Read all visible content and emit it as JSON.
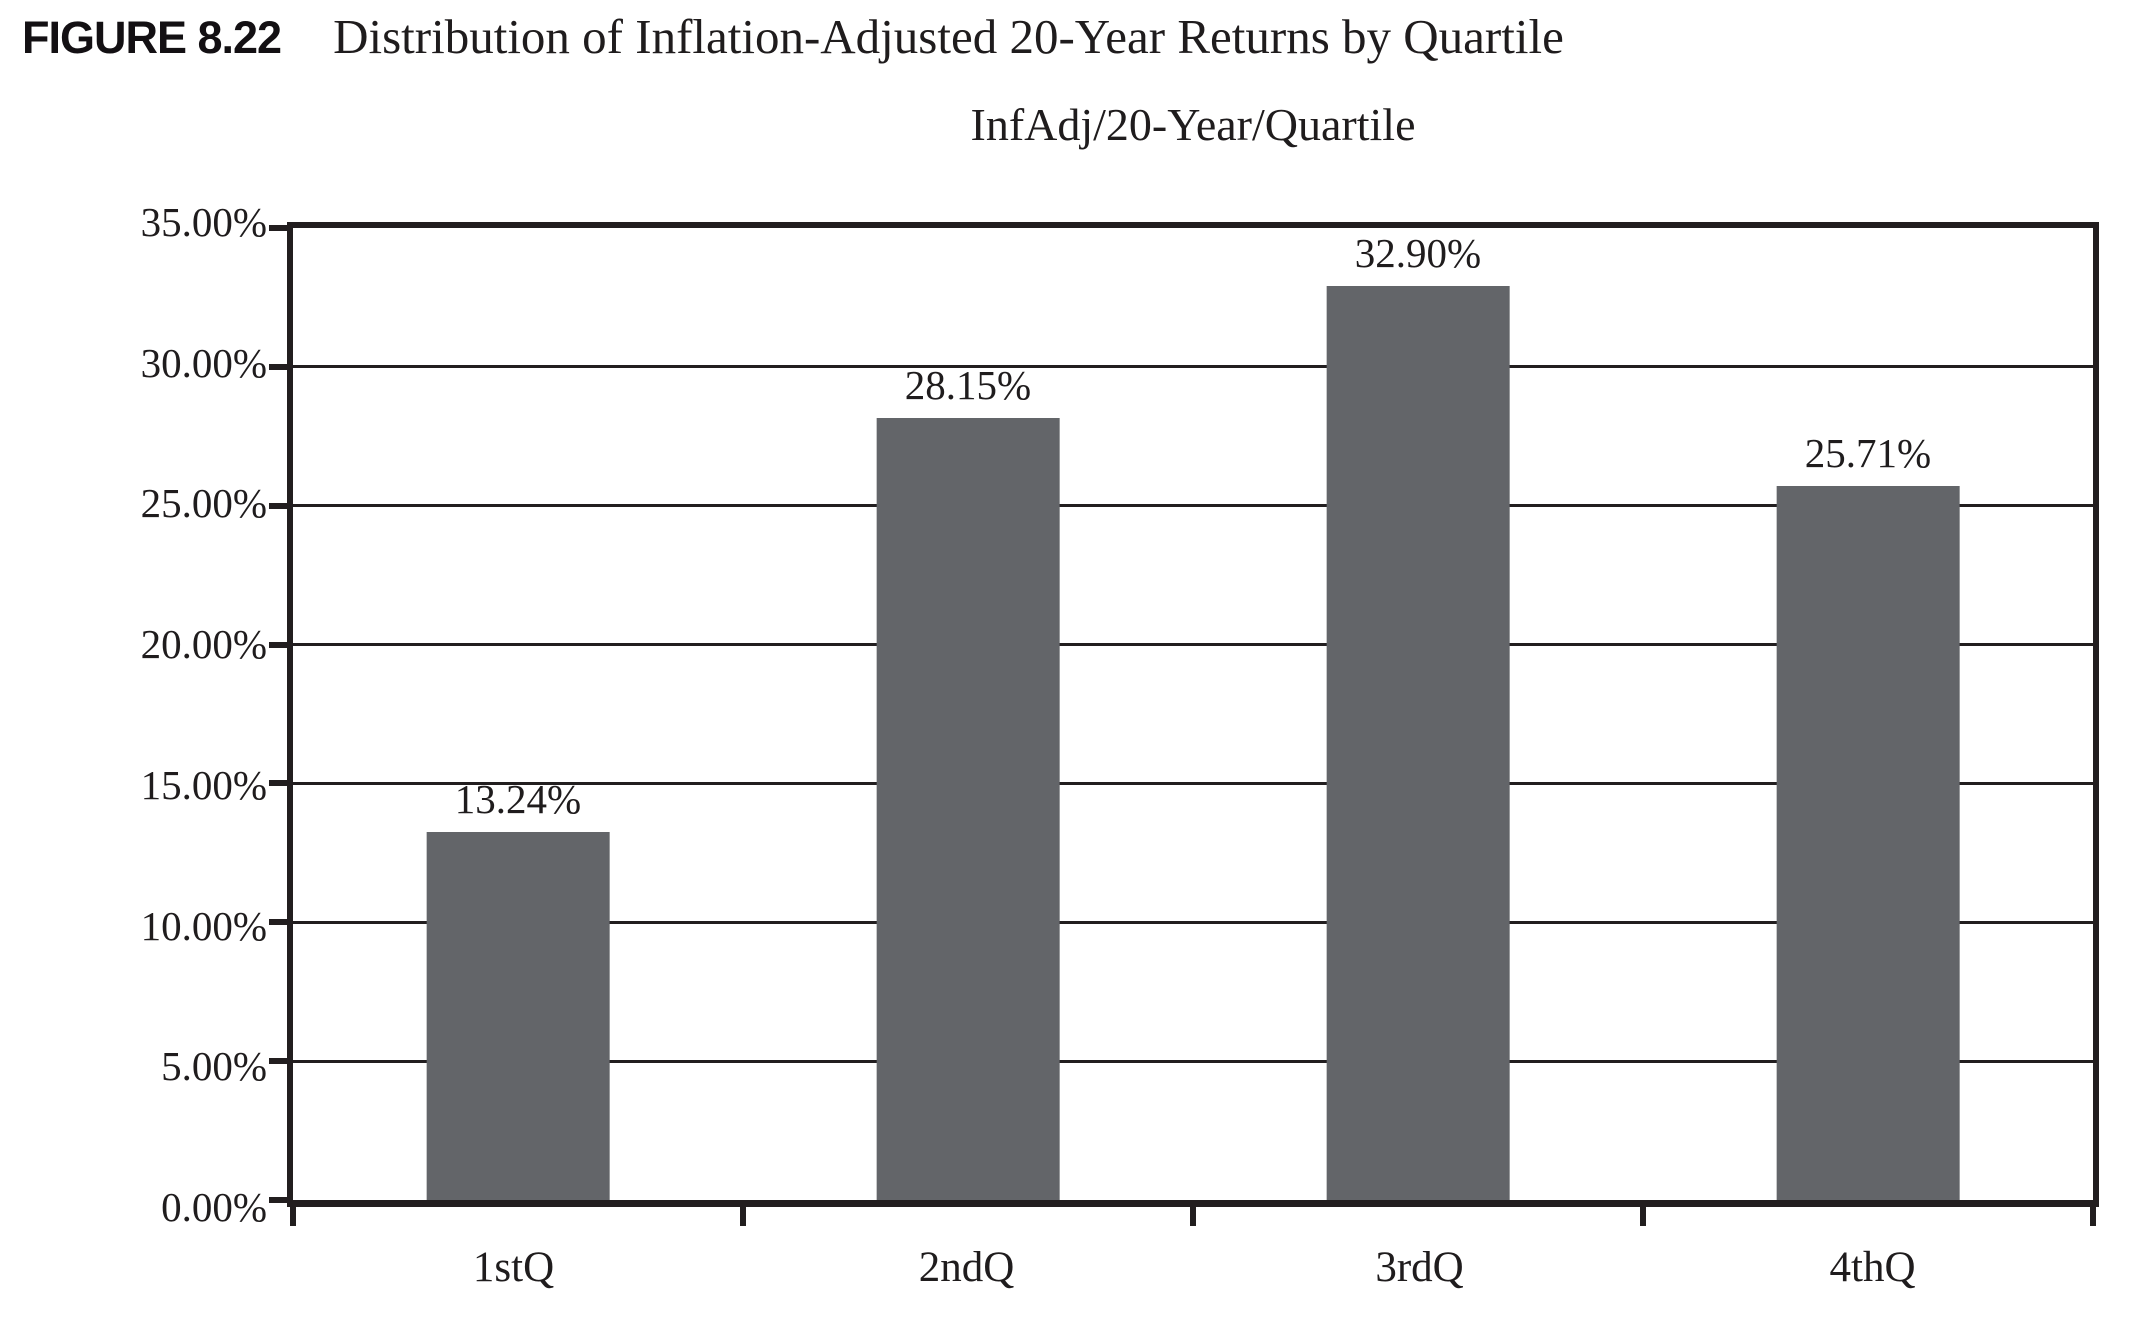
{
  "figure": {
    "label": "FIGURE 8.22",
    "caption": "Distribution of Inflation-Adjusted 20-Year Returns by Quartile"
  },
  "chart_data": {
    "type": "bar",
    "title": "InfAdj/20-Year/Quartile",
    "categories": [
      "1stQ",
      "2ndQ",
      "3rdQ",
      "4thQ"
    ],
    "values": [
      13.24,
      28.15,
      32.9,
      25.71
    ],
    "value_labels": [
      "13.24%",
      "28.15%",
      "32.90%",
      "25.71%"
    ],
    "y_ticks": [
      "35.00%",
      "30.00%",
      "25.00%",
      "20.00%",
      "15.00%",
      "10.00%",
      "5.00%",
      "0.00%"
    ],
    "y_tick_values": [
      35,
      30,
      25,
      20,
      15,
      10,
      5,
      0
    ],
    "xlabel": "",
    "ylabel": "",
    "ylim": [
      0,
      35
    ],
    "grid": true,
    "legend": false,
    "colors": {
      "bar": "#636569",
      "line": "#221e1f",
      "text": "#1f1c1d"
    }
  }
}
